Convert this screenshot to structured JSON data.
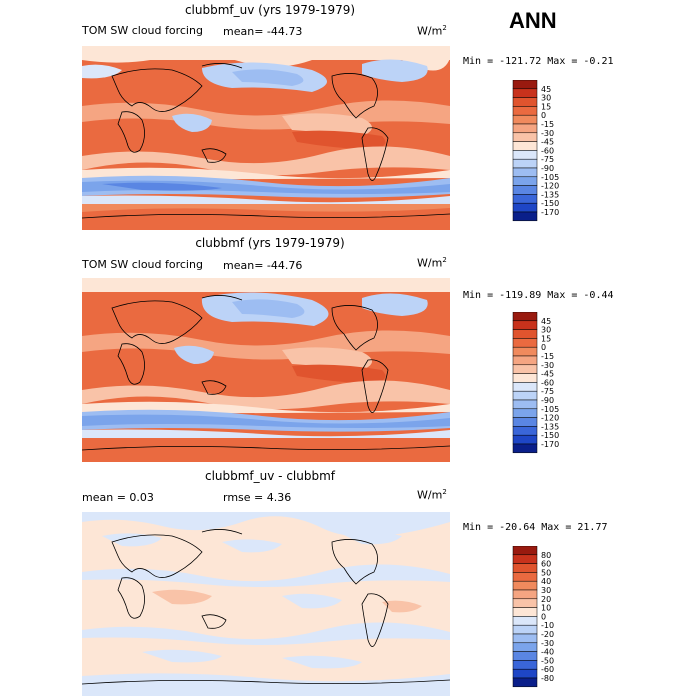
{
  "season": "ANN",
  "panels": [
    {
      "title": "clubbmf_uv (yrs 1979-1979)",
      "left_label": "TOM SW cloud forcing",
      "mean_text": "mean=  -44.73",
      "unit_base": "W/m",
      "unit_exp": "2",
      "minmax_text": "Min = -121.72 Max =   -0.21",
      "type": "abs"
    },
    {
      "title": "clubbmf (yrs 1979-1979)",
      "left_label": "TOM SW cloud forcing",
      "mean_text": "mean=  -44.76",
      "unit_base": "W/m",
      "unit_exp": "2",
      "minmax_text": "Min = -119.89 Max =   -0.44",
      "type": "abs"
    },
    {
      "title": "clubbmf_uv - clubbmf",
      "left_label": "mean =    0.03",
      "mean_text": "rmse =    4.36",
      "unit_base": "W/m",
      "unit_exp": "2",
      "minmax_text": "Min = -20.64 Max =  21.77",
      "type": "diff"
    }
  ],
  "colorbars": {
    "abs": {
      "labels": [
        "45",
        "30",
        "15",
        "0",
        "-15",
        "-30",
        "-45",
        "-60",
        "-75",
        "-90",
        "-105",
        "-120",
        "-135",
        "-150",
        "-170"
      ],
      "colors": [
        "#991a0f",
        "#c8321c",
        "#e0542e",
        "#ea6a40",
        "#f08a5d",
        "#f5a582",
        "#f9c3a8",
        "#fde6d6",
        "#dbe7fa",
        "#bcd3f7",
        "#9dbdf2",
        "#7ba4eb",
        "#5a86e3",
        "#3a66d9",
        "#1e46c6",
        "#0a1f8a"
      ]
    },
    "diff": {
      "labels": [
        "80",
        "60",
        "50",
        "40",
        "30",
        "20",
        "10",
        "0",
        "-10",
        "-20",
        "-30",
        "-40",
        "-50",
        "-60",
        "-80"
      ],
      "colors": [
        "#991a0f",
        "#c8321c",
        "#e0542e",
        "#ea6a40",
        "#f08a5d",
        "#f5a582",
        "#f9c3a8",
        "#fde6d6",
        "#dbe7fa",
        "#bcd3f7",
        "#9dbdf2",
        "#7ba4eb",
        "#5a86e3",
        "#3a66d9",
        "#1e46c6",
        "#0a1f8a"
      ]
    }
  },
  "chart_data": [
    {
      "type": "heatmap",
      "title": "clubbmf_uv (yrs 1979-1979)",
      "variable": "TOM SW cloud forcing",
      "units": "W/m2",
      "mean": -44.73,
      "min": -121.72,
      "max": -0.21,
      "levels": [
        45,
        30,
        15,
        0,
        -15,
        -30,
        -45,
        -60,
        -75,
        -90,
        -105,
        -120,
        -135,
        -150,
        -170
      ]
    },
    {
      "type": "heatmap",
      "title": "clubbmf (yrs 1979-1979)",
      "variable": "TOM SW cloud forcing",
      "units": "W/m2",
      "mean": -44.76,
      "min": -119.89,
      "max": -0.44,
      "levels": [
        45,
        30,
        15,
        0,
        -15,
        -30,
        -45,
        -60,
        -75,
        -90,
        -105,
        -120,
        -135,
        -150,
        -170
      ]
    },
    {
      "type": "heatmap",
      "title": "clubbmf_uv - clubbmf",
      "units": "W/m2",
      "mean": 0.03,
      "rmse": 4.36,
      "min": -20.64,
      "max": 21.77,
      "levels": [
        80,
        60,
        50,
        40,
        30,
        20,
        10,
        0,
        -10,
        -20,
        -30,
        -40,
        -50,
        -60,
        -80
      ]
    }
  ]
}
